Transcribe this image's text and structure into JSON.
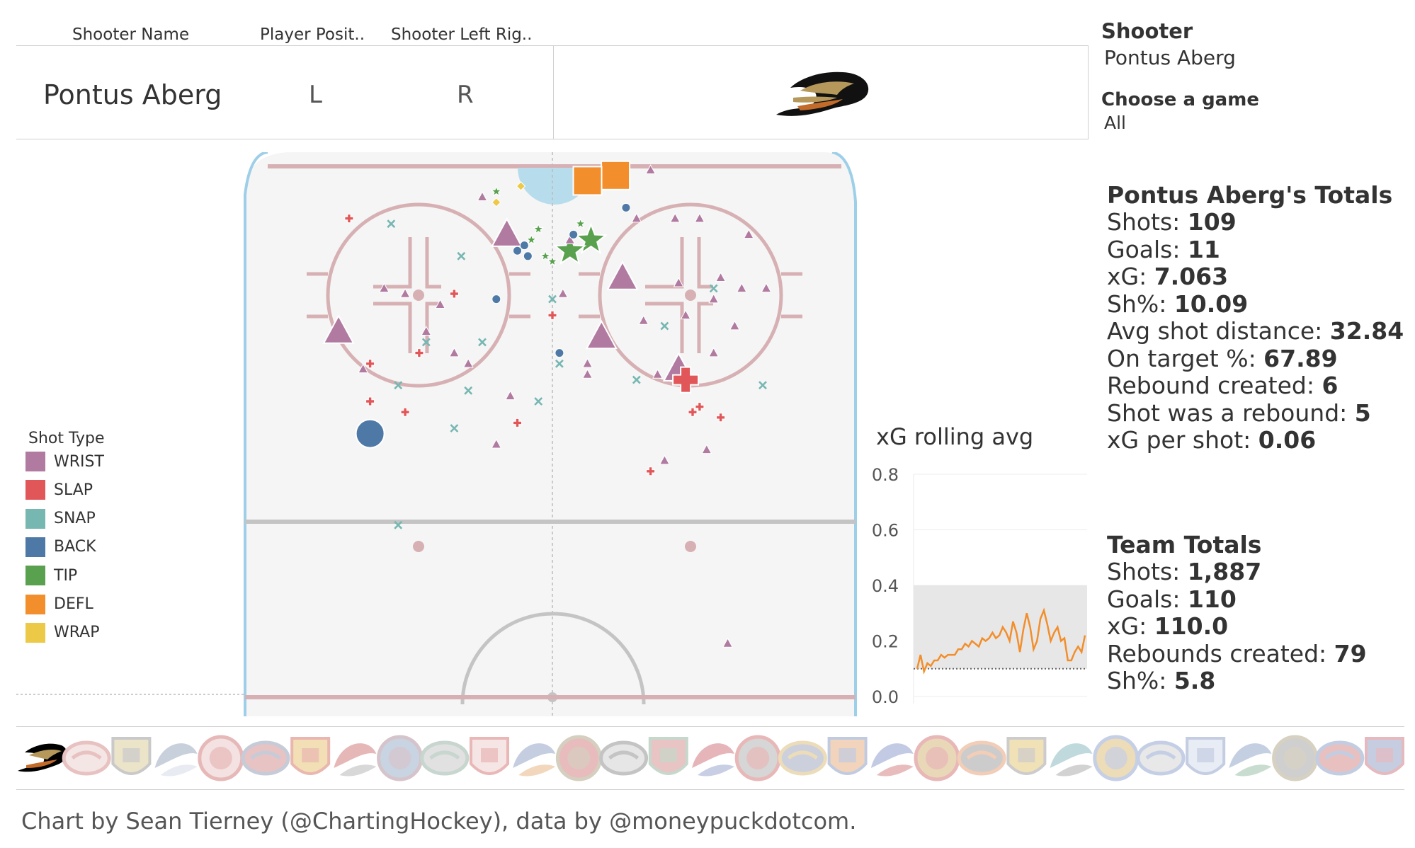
{
  "header": {
    "col1_label": "Shooter Name",
    "col2_label": "Player Posit..",
    "col3_label": "Shooter Left Rig..",
    "shooter_name": "Pontus Aberg",
    "position": "L",
    "hand": "R",
    "team_logo": "ducks-logo-icon"
  },
  "filters": {
    "shooter_title": "Shooter",
    "shooter_value": "Pontus Aberg",
    "game_title": "Choose a game",
    "game_value": "All"
  },
  "player_totals": {
    "title": "Pontus Aberg's Totals",
    "stats": [
      {
        "label": "Shots: ",
        "value": "109"
      },
      {
        "label": "Goals: ",
        "value": "11"
      },
      {
        "label": "xG: ",
        "value": "7.063"
      },
      {
        "label": "Sh%: ",
        "value": "10.09"
      },
      {
        "label": "Avg shot distance: ",
        "value": "32.84"
      },
      {
        "label": "On target %: ",
        "value": "67.89"
      },
      {
        "label": "Rebound created: ",
        "value": "6"
      },
      {
        "label": "Shot was a rebound: ",
        "value": "5"
      },
      {
        "label": "xG per shot: ",
        "value": "0.06"
      }
    ]
  },
  "team_totals": {
    "title": "Team Totals",
    "stats": [
      {
        "label": "Shots: ",
        "value": "1,887"
      },
      {
        "label": "Goals: ",
        "value": "110"
      },
      {
        "label": "xG: ",
        "value": "110.0"
      },
      {
        "label": "Rebounds created: ",
        "value": "79"
      },
      {
        "label": "Sh%: ",
        "value": "5.8"
      }
    ]
  },
  "legend": {
    "title": "Shot Type",
    "items": [
      {
        "label": "WRIST",
        "color": "#b07aa1"
      },
      {
        "label": "SLAP",
        "color": "#e15759"
      },
      {
        "label": "SNAP",
        "color": "#76b7b2"
      },
      {
        "label": "BACK",
        "color": "#4e79a7"
      },
      {
        "label": "TIP",
        "color": "#59a14f"
      },
      {
        "label": "DEFL",
        "color": "#f28e2b"
      },
      {
        "label": "WRAP",
        "color": "#edc948"
      }
    ]
  },
  "chart_data": [
    {
      "type": "scatter",
      "title": "",
      "x_range": [
        -42.5,
        42.5
      ],
      "y_range": [
        0,
        100
      ],
      "grid": false,
      "legend_position": "left",
      "points": [
        {
          "type": "DEFL",
          "x": 9,
          "y": 97,
          "goal": true
        },
        {
          "type": "DEFL",
          "x": 5,
          "y": 96,
          "goal": true
        },
        {
          "type": "TIP",
          "x": 5.5,
          "y": 85,
          "goal": true
        },
        {
          "type": "TIP",
          "x": 2.5,
          "y": 83,
          "goal": true
        },
        {
          "type": "WRIST",
          "x": -6.5,
          "y": 86,
          "goal": true
        },
        {
          "type": "WRIST",
          "x": 10,
          "y": 78,
          "goal": true
        },
        {
          "type": "WRIST",
          "x": -30.5,
          "y": 68,
          "goal": true
        },
        {
          "type": "WRIST",
          "x": 7,
          "y": 67,
          "goal": true
        },
        {
          "type": "WRIST",
          "x": 18,
          "y": 61,
          "goal": true
        },
        {
          "type": "SLAP",
          "x": 19,
          "y": 59,
          "goal": true
        },
        {
          "type": "BACK",
          "x": -26,
          "y": 49,
          "goal": true
        },
        {
          "type": "WRIST",
          "x": -10,
          "y": 93
        },
        {
          "type": "WRIST",
          "x": 14,
          "y": 98
        },
        {
          "type": "WRIST",
          "x": 12,
          "y": 89
        },
        {
          "type": "WRIST",
          "x": 17.5,
          "y": 89
        },
        {
          "type": "WRIST",
          "x": 21,
          "y": 89
        },
        {
          "type": "WRIST",
          "x": 28,
          "y": 86
        },
        {
          "type": "WRIST",
          "x": 2.5,
          "y": 85
        },
        {
          "type": "WRIST",
          "x": -24,
          "y": 76
        },
        {
          "type": "WRIST",
          "x": -21,
          "y": 75
        },
        {
          "type": "WRIST",
          "x": -16,
          "y": 73
        },
        {
          "type": "WRIST",
          "x": 1.5,
          "y": 75
        },
        {
          "type": "WRIST",
          "x": -18,
          "y": 68
        },
        {
          "type": "WRIST",
          "x": -14,
          "y": 64
        },
        {
          "type": "WRIST",
          "x": -12,
          "y": 62
        },
        {
          "type": "WRIST",
          "x": -27,
          "y": 61
        },
        {
          "type": "WRIST",
          "x": -6,
          "y": 56
        },
        {
          "type": "WRIST",
          "x": 5,
          "y": 62
        },
        {
          "type": "WRIST",
          "x": 5,
          "y": 60
        },
        {
          "type": "WRIST",
          "x": 13,
          "y": 70
        },
        {
          "type": "WRIST",
          "x": 19,
          "y": 71
        },
        {
          "type": "WRIST",
          "x": 26,
          "y": 69
        },
        {
          "type": "WRIST",
          "x": 15,
          "y": 60
        },
        {
          "type": "WRIST",
          "x": 23,
          "y": 64
        },
        {
          "type": "WRIST",
          "x": 27,
          "y": 76
        },
        {
          "type": "WRIST",
          "x": 30.5,
          "y": 76
        },
        {
          "type": "WRIST",
          "x": 23,
          "y": 74
        },
        {
          "type": "WRIST",
          "x": 24,
          "y": 78
        },
        {
          "type": "WRIST",
          "x": 18,
          "y": 77
        },
        {
          "type": "WRIST",
          "x": -8,
          "y": 47
        },
        {
          "type": "WRIST",
          "x": 16,
          "y": 44
        },
        {
          "type": "WRIST",
          "x": 22,
          "y": 46
        },
        {
          "type": "WRIST",
          "x": 25,
          "y": 10
        },
        {
          "type": "SLAP",
          "x": -29,
          "y": 89
        },
        {
          "type": "SLAP",
          "x": -14,
          "y": 75
        },
        {
          "type": "SLAP",
          "x": 0,
          "y": 71
        },
        {
          "type": "SLAP",
          "x": -19,
          "y": 64
        },
        {
          "type": "SLAP",
          "x": -26,
          "y": 62
        },
        {
          "type": "SLAP",
          "x": -26,
          "y": 55
        },
        {
          "type": "SLAP",
          "x": -21,
          "y": 53
        },
        {
          "type": "SLAP",
          "x": -5,
          "y": 51
        },
        {
          "type": "SLAP",
          "x": 21,
          "y": 54
        },
        {
          "type": "SLAP",
          "x": 20,
          "y": 53
        },
        {
          "type": "SLAP",
          "x": 24,
          "y": 52
        },
        {
          "type": "SLAP",
          "x": 14,
          "y": 42
        },
        {
          "type": "SNAP",
          "x": -23,
          "y": 88
        },
        {
          "type": "SNAP",
          "x": -13,
          "y": 82
        },
        {
          "type": "SNAP",
          "x": -18,
          "y": 66
        },
        {
          "type": "SNAP",
          "x": -10,
          "y": 66
        },
        {
          "type": "SNAP",
          "x": -22,
          "y": 58
        },
        {
          "type": "SNAP",
          "x": -12,
          "y": 57
        },
        {
          "type": "SNAP",
          "x": -14,
          "y": 50
        },
        {
          "type": "SNAP",
          "x": -2,
          "y": 55
        },
        {
          "type": "SNAP",
          "x": 0,
          "y": 74
        },
        {
          "type": "SNAP",
          "x": 1,
          "y": 62
        },
        {
          "type": "SNAP",
          "x": 12,
          "y": 59
        },
        {
          "type": "SNAP",
          "x": 16,
          "y": 69
        },
        {
          "type": "SNAP",
          "x": 23,
          "y": 76
        },
        {
          "type": "SNAP",
          "x": 30,
          "y": 58
        },
        {
          "type": "SNAP",
          "x": -22,
          "y": 32
        },
        {
          "type": "BACK",
          "x": -5,
          "y": 83
        },
        {
          "type": "BACK",
          "x": -3.5,
          "y": 82
        },
        {
          "type": "BACK",
          "x": -4,
          "y": 84
        },
        {
          "type": "BACK",
          "x": -8,
          "y": 74
        },
        {
          "type": "BACK",
          "x": 1,
          "y": 64
        },
        {
          "type": "BACK",
          "x": 10.5,
          "y": 91
        },
        {
          "type": "BACK",
          "x": 3,
          "y": 86
        },
        {
          "type": "TIP",
          "x": -8,
          "y": 94
        },
        {
          "type": "TIP",
          "x": -2,
          "y": 87
        },
        {
          "type": "TIP",
          "x": -3,
          "y": 85
        },
        {
          "type": "TIP",
          "x": -1,
          "y": 82
        },
        {
          "type": "TIP",
          "x": 0,
          "y": 81
        },
        {
          "type": "TIP",
          "x": 4,
          "y": 88
        },
        {
          "type": "WRAP",
          "x": -4.5,
          "y": 95
        },
        {
          "type": "WRAP",
          "x": -8,
          "y": 92
        }
      ]
    },
    {
      "type": "line",
      "title": "xG rolling avg",
      "ylim": [
        0,
        0.8
      ],
      "yticks": [
        "0.8",
        "0.6",
        "0.4",
        "0.2",
        "0.0"
      ],
      "band": [
        0.1,
        0.4
      ],
      "baseline": 0.1,
      "values": [
        0.1,
        0.15,
        0.09,
        0.12,
        0.11,
        0.13,
        0.13,
        0.15,
        0.14,
        0.15,
        0.15,
        0.15,
        0.17,
        0.17,
        0.19,
        0.18,
        0.2,
        0.19,
        0.18,
        0.21,
        0.2,
        0.21,
        0.23,
        0.21,
        0.22,
        0.25,
        0.23,
        0.2,
        0.27,
        0.23,
        0.16,
        0.24,
        0.3,
        0.25,
        0.17,
        0.2,
        0.28,
        0.31,
        0.26,
        0.2,
        0.23,
        0.25,
        0.2,
        0.21,
        0.13,
        0.13,
        0.16,
        0.18,
        0.16,
        0.22
      ]
    }
  ],
  "team_logos": [
    {
      "name": "ducks-logo-icon",
      "color": "#000000",
      "accent": "#b5985a"
    },
    {
      "name": "coyotes-logo-icon",
      "color": "#e8c1c1",
      "accent": "#f5e6e6"
    },
    {
      "name": "bruins-logo-icon",
      "color": "#c9c9c9",
      "accent": "#ece4c9"
    },
    {
      "name": "sabres-logo-icon",
      "color": "#c8d0dc",
      "accent": "#e8ebf1"
    },
    {
      "name": "hurricanes-logo-icon",
      "color": "#e7b8b8",
      "accent": "#f4e1e1"
    },
    {
      "name": "bluejackets-logo-icon",
      "color": "#c6cbd8",
      "accent": "#e8c3c3"
    },
    {
      "name": "flames-logo-icon",
      "color": "#eab6b0",
      "accent": "#f2dfb5"
    },
    {
      "name": "blackhawks-logo-icon",
      "color": "#e6b7b7",
      "accent": "#d8d8d8"
    },
    {
      "name": "avalanche-logo-icon",
      "color": "#d6c4cb",
      "accent": "#c9d4e3"
    },
    {
      "name": "stars-logo-icon",
      "color": "#c7d6cf",
      "accent": "#e1e1e1"
    },
    {
      "name": "redwings-logo-icon",
      "color": "#eab7b7",
      "accent": "#f5e5e5"
    },
    {
      "name": "oilers-logo-icon",
      "color": "#c5cde0",
      "accent": "#f2d7bd"
    },
    {
      "name": "panthers-logo-icon",
      "color": "#d5cfc0",
      "accent": "#e8bcbc"
    },
    {
      "name": "kings-logo-icon",
      "color": "#c4c4c4",
      "accent": "#e6e6e6"
    },
    {
      "name": "wild-logo-icon",
      "color": "#c5d8cb",
      "accent": "#e9c4c4"
    },
    {
      "name": "canadiens-logo-icon",
      "color": "#e6b5b9",
      "accent": "#c8cee4"
    },
    {
      "name": "devils-logo-icon",
      "color": "#e8b8b8",
      "accent": "#d6d6d6"
    },
    {
      "name": "predators-logo-icon",
      "color": "#ecdcb9",
      "accent": "#cbd0dc"
    },
    {
      "name": "islanders-logo-icon",
      "color": "#c1cbe0",
      "accent": "#f2d3bb"
    },
    {
      "name": "rangers-logo-icon",
      "color": "#c3cbe4",
      "accent": "#e8bcbc"
    },
    {
      "name": "senators-logo-icon",
      "color": "#e8b7b7",
      "accent": "#e8d8b8"
    },
    {
      "name": "flyers-logo-icon",
      "color": "#f2cdb7",
      "accent": "#cccccc"
    },
    {
      "name": "penguins-logo-icon",
      "color": "#cccccc",
      "accent": "#f0e2b6"
    },
    {
      "name": "sharks-logo-icon",
      "color": "#bfd9dc",
      "accent": "#d2d2d2"
    },
    {
      "name": "blues-logo-icon",
      "color": "#c5cfe6",
      "accent": "#eddcb8"
    },
    {
      "name": "lightning-logo-icon",
      "color": "#c4cfe6",
      "accent": "#e8e8e8"
    },
    {
      "name": "mapleleafs-logo-icon",
      "color": "#c4cde2",
      "accent": "#e8ecf5"
    },
    {
      "name": "canucks-logo-icon",
      "color": "#c4d0e2",
      "accent": "#c8dccf"
    },
    {
      "name": "goldenknights-logo-icon",
      "color": "#d7d1c2",
      "accent": "#cfcfcf"
    },
    {
      "name": "jets-logo-icon",
      "color": "#c3cde1",
      "accent": "#e8c0c0"
    },
    {
      "name": "capitals-logo-icon",
      "color": "#e6b9be",
      "accent": "#c6cde0"
    }
  ],
  "footer": "Chart by Sean Tierney (@ChartingHockey), data by @moneypuckdotcom."
}
